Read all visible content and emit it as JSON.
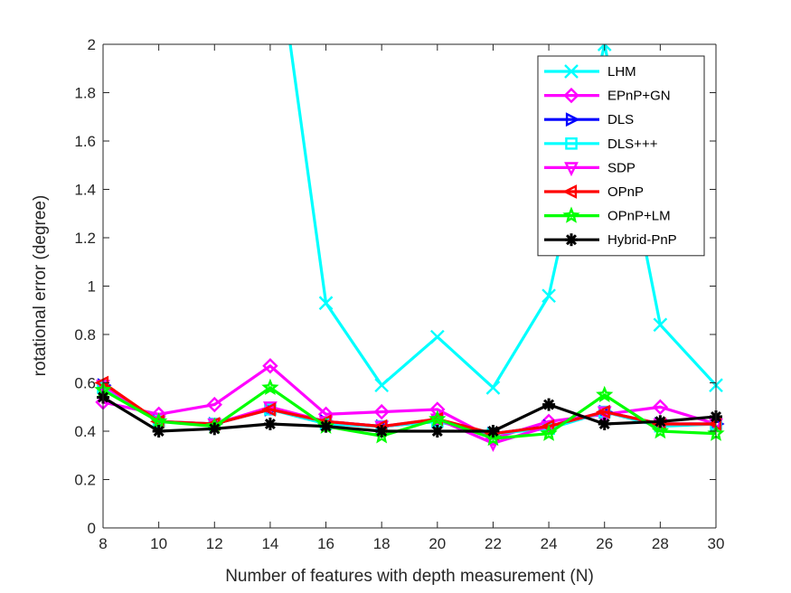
{
  "chart_data": {
    "type": "line",
    "title": "",
    "xlabel": "Number of features with depth measurement (N)",
    "ylabel": "rotational error (degree)",
    "x": [
      8,
      10,
      12,
      14,
      16,
      18,
      20,
      22,
      24,
      26,
      28,
      30
    ],
    "xlim": [
      8,
      30
    ],
    "ylim": [
      0,
      2
    ],
    "xticks": [
      "8",
      "10",
      "12",
      "14",
      "16",
      "18",
      "20",
      "22",
      "24",
      "26",
      "28",
      "30"
    ],
    "yticks": [
      "0",
      "0.2",
      "0.4",
      "0.6",
      "0.8",
      "1",
      "1.2",
      "1.4",
      "1.6",
      "1.8",
      "2"
    ],
    "grid": false,
    "legend_position": "top-right",
    "series": [
      {
        "name": "LHM",
        "color": "#00ffff",
        "marker": "x",
        "values": [
          null,
          null,
          null,
          null,
          0.93,
          0.59,
          0.79,
          0.58,
          0.96,
          2.0,
          0.84,
          0.59
        ],
        "clipped_before": [
          14,
          2.6
        ]
      },
      {
        "name": "EPnP+GN",
        "color": "#ff00ff",
        "marker": "diamond",
        "values": [
          0.52,
          0.47,
          0.51,
          0.67,
          0.47,
          0.48,
          0.49,
          0.37,
          0.44,
          0.47,
          0.5,
          0.43
        ]
      },
      {
        "name": "DLS",
        "color": "#0000ff",
        "marker": "triangle-right",
        "values": [
          0.59,
          0.44,
          0.43,
          0.49,
          0.44,
          0.42,
          0.44,
          0.39,
          0.42,
          0.48,
          0.43,
          0.43
        ]
      },
      {
        "name": "DLS+++",
        "color": "#00ffff",
        "marker": "square",
        "values": [
          0.58,
          0.44,
          0.43,
          0.49,
          0.43,
          0.42,
          0.44,
          0.39,
          0.41,
          0.48,
          0.42,
          0.43
        ]
      },
      {
        "name": "SDP",
        "color": "#ff00ff",
        "marker": "triangle-down",
        "values": [
          0.59,
          0.44,
          0.43,
          0.5,
          0.44,
          0.42,
          0.45,
          0.35,
          0.42,
          0.48,
          0.43,
          0.43
        ]
      },
      {
        "name": "OPnP",
        "color": "#ff0000",
        "marker": "triangle-left",
        "values": [
          0.6,
          0.44,
          0.43,
          0.49,
          0.44,
          0.42,
          0.45,
          0.39,
          0.42,
          0.48,
          0.43,
          0.43
        ]
      },
      {
        "name": "OPnP+LM",
        "color": "#00ff00",
        "marker": "star",
        "values": [
          0.57,
          0.44,
          0.42,
          0.58,
          0.42,
          0.38,
          0.45,
          0.37,
          0.39,
          0.55,
          0.4,
          0.39
        ]
      },
      {
        "name": "Hybrid-PnP",
        "color": "#000000",
        "marker": "asterisk",
        "values": [
          0.54,
          0.4,
          0.41,
          0.43,
          0.42,
          0.4,
          0.4,
          0.4,
          0.51,
          0.43,
          0.44,
          0.46
        ]
      }
    ]
  }
}
